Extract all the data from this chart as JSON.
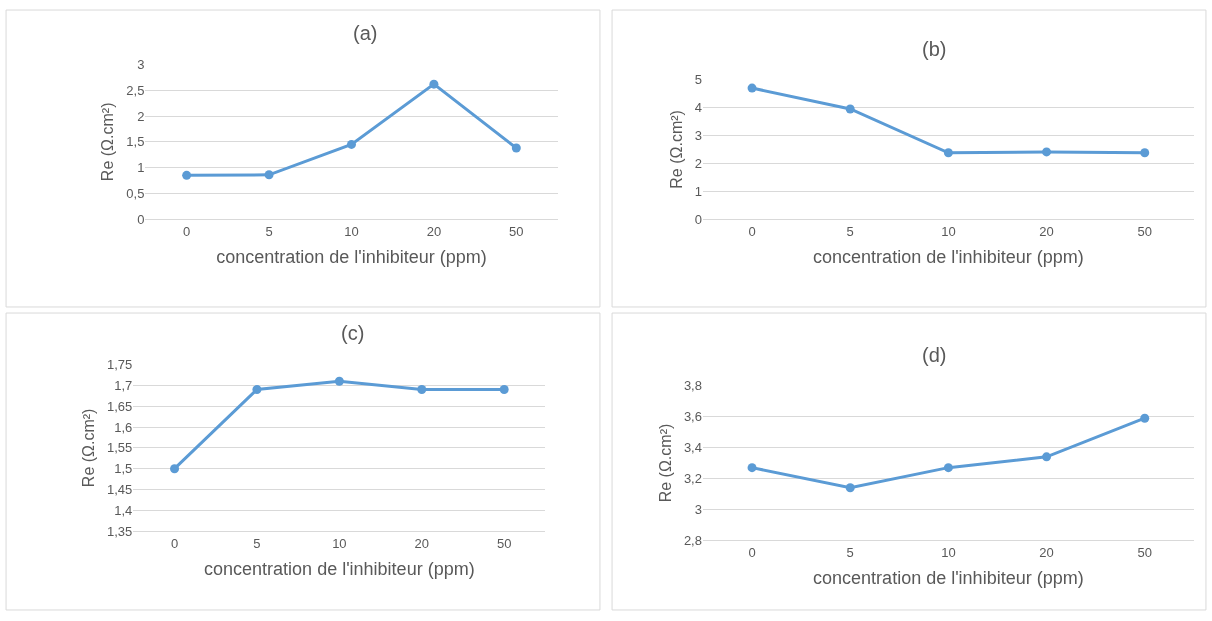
{
  "chart_data": [
    {
      "type": "line",
      "title": "(a)",
      "xlabel": "concentration de l'inhibiteur (ppm)",
      "ylabel": "Re (Ω.cm²)",
      "categories": [
        "0",
        "5",
        "10",
        "20",
        "50"
      ],
      "series": [
        {
          "color": "#5b9bd5",
          "values": [
            0.85,
            0.86,
            1.45,
            2.62,
            1.38
          ]
        }
      ],
      "ylim": [
        0,
        3
      ],
      "yticks": [
        0,
        {
          "value": 0.5,
          "label": "0,5"
        },
        1,
        {
          "value": 1.5,
          "label": "1,5"
        },
        2,
        {
          "value": 2.5,
          "label": "2,5"
        },
        3
      ],
      "grid": "y",
      "marker": "circle"
    },
    {
      "type": "line",
      "title": "(b)",
      "xlabel": "concentration de l'inhibiteur (ppm)",
      "ylabel": "Re (Ω.cm²)",
      "categories": [
        "0",
        "5",
        "10",
        "20",
        "50"
      ],
      "series": [
        {
          "color": "#5b9bd5",
          "values": [
            4.7,
            3.95,
            2.38,
            2.41,
            2.38
          ]
        }
      ],
      "ylim": [
        0,
        5
      ],
      "yticks": [
        0,
        1,
        2,
        3,
        4,
        5
      ],
      "grid": "y",
      "marker": "circle"
    },
    {
      "type": "line",
      "title": "(c)",
      "xlabel": "concentration de l'inhibiteur (ppm)",
      "ylabel": "Re (Ω.cm²)",
      "categories": [
        "0",
        "5",
        "10",
        "20",
        "50"
      ],
      "series": [
        {
          "color": "#5b9bd5",
          "values": [
            1.5,
            1.69,
            1.71,
            1.69,
            1.69
          ]
        }
      ],
      "ylim": [
        1.35,
        1.75
      ],
      "yticks": [
        {
          "value": 1.35,
          "label": "1,35"
        },
        {
          "value": 1.4,
          "label": "1,4"
        },
        {
          "value": 1.45,
          "label": "1,45"
        },
        {
          "value": 1.5,
          "label": "1,5"
        },
        {
          "value": 1.55,
          "label": "1,55"
        },
        {
          "value": 1.6,
          "label": "1,6"
        },
        {
          "value": 1.65,
          "label": "1,65"
        },
        {
          "value": 1.7,
          "label": "1,7"
        },
        {
          "value": 1.75,
          "label": "1,75"
        }
      ],
      "grid": "y",
      "marker": "circle"
    },
    {
      "type": "line",
      "title": "(d)",
      "xlabel": "concentration de l'inhibiteur (ppm)",
      "ylabel": "Re (Ω.cm²)",
      "categories": [
        "0",
        "5",
        "10",
        "20",
        "50"
      ],
      "series": [
        {
          "color": "#5b9bd5",
          "values": [
            3.27,
            3.14,
            3.27,
            3.34,
            3.59
          ]
        }
      ],
      "ylim": [
        2.8,
        3.8
      ],
      "yticks": [
        {
          "value": 2.8,
          "label": "2,8"
        },
        3,
        {
          "value": 3.2,
          "label": "3,2"
        },
        {
          "value": 3.4,
          "label": "3,4"
        },
        {
          "value": 3.6,
          "label": "3,6"
        },
        {
          "value": 3.8,
          "label": "3,8"
        }
      ],
      "grid": "y",
      "marker": "circle"
    }
  ]
}
